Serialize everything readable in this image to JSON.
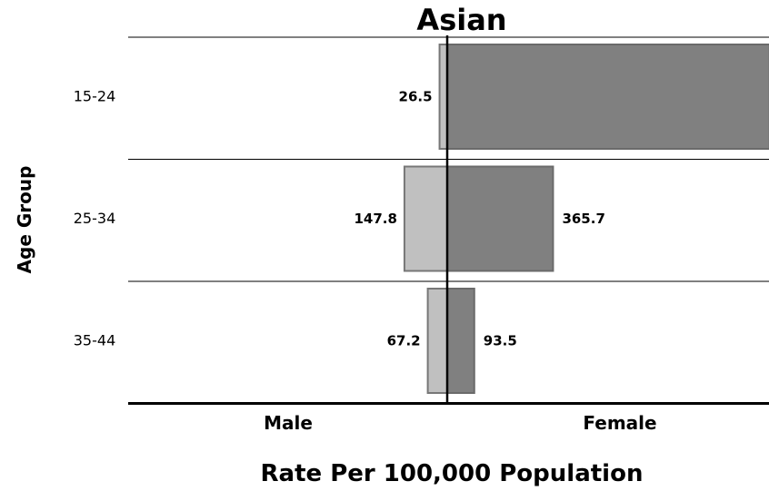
{
  "chart_data": {
    "type": "bar",
    "orientation": "horizontal-butterfly",
    "title": "Asian",
    "xlabel": "Rate Per 100,000 Population",
    "ylabel": "Age Group",
    "side_labels": [
      "Male",
      "Female"
    ],
    "categories": [
      "15-24",
      "25-34",
      "35-44"
    ],
    "series": [
      {
        "name": "Male",
        "values": [
          26.5,
          147.8,
          67.2
        ],
        "color": "#c0c0c0"
      },
      {
        "name": "Female",
        "values": [
          1114.2,
          365.7,
          93.5
        ],
        "color": "#808080"
      }
    ],
    "value_labels_shown": {
      "Male": [
        true,
        true,
        true
      ],
      "Female": [
        false,
        true,
        true
      ]
    },
    "grid": "horizontal separators"
  }
}
